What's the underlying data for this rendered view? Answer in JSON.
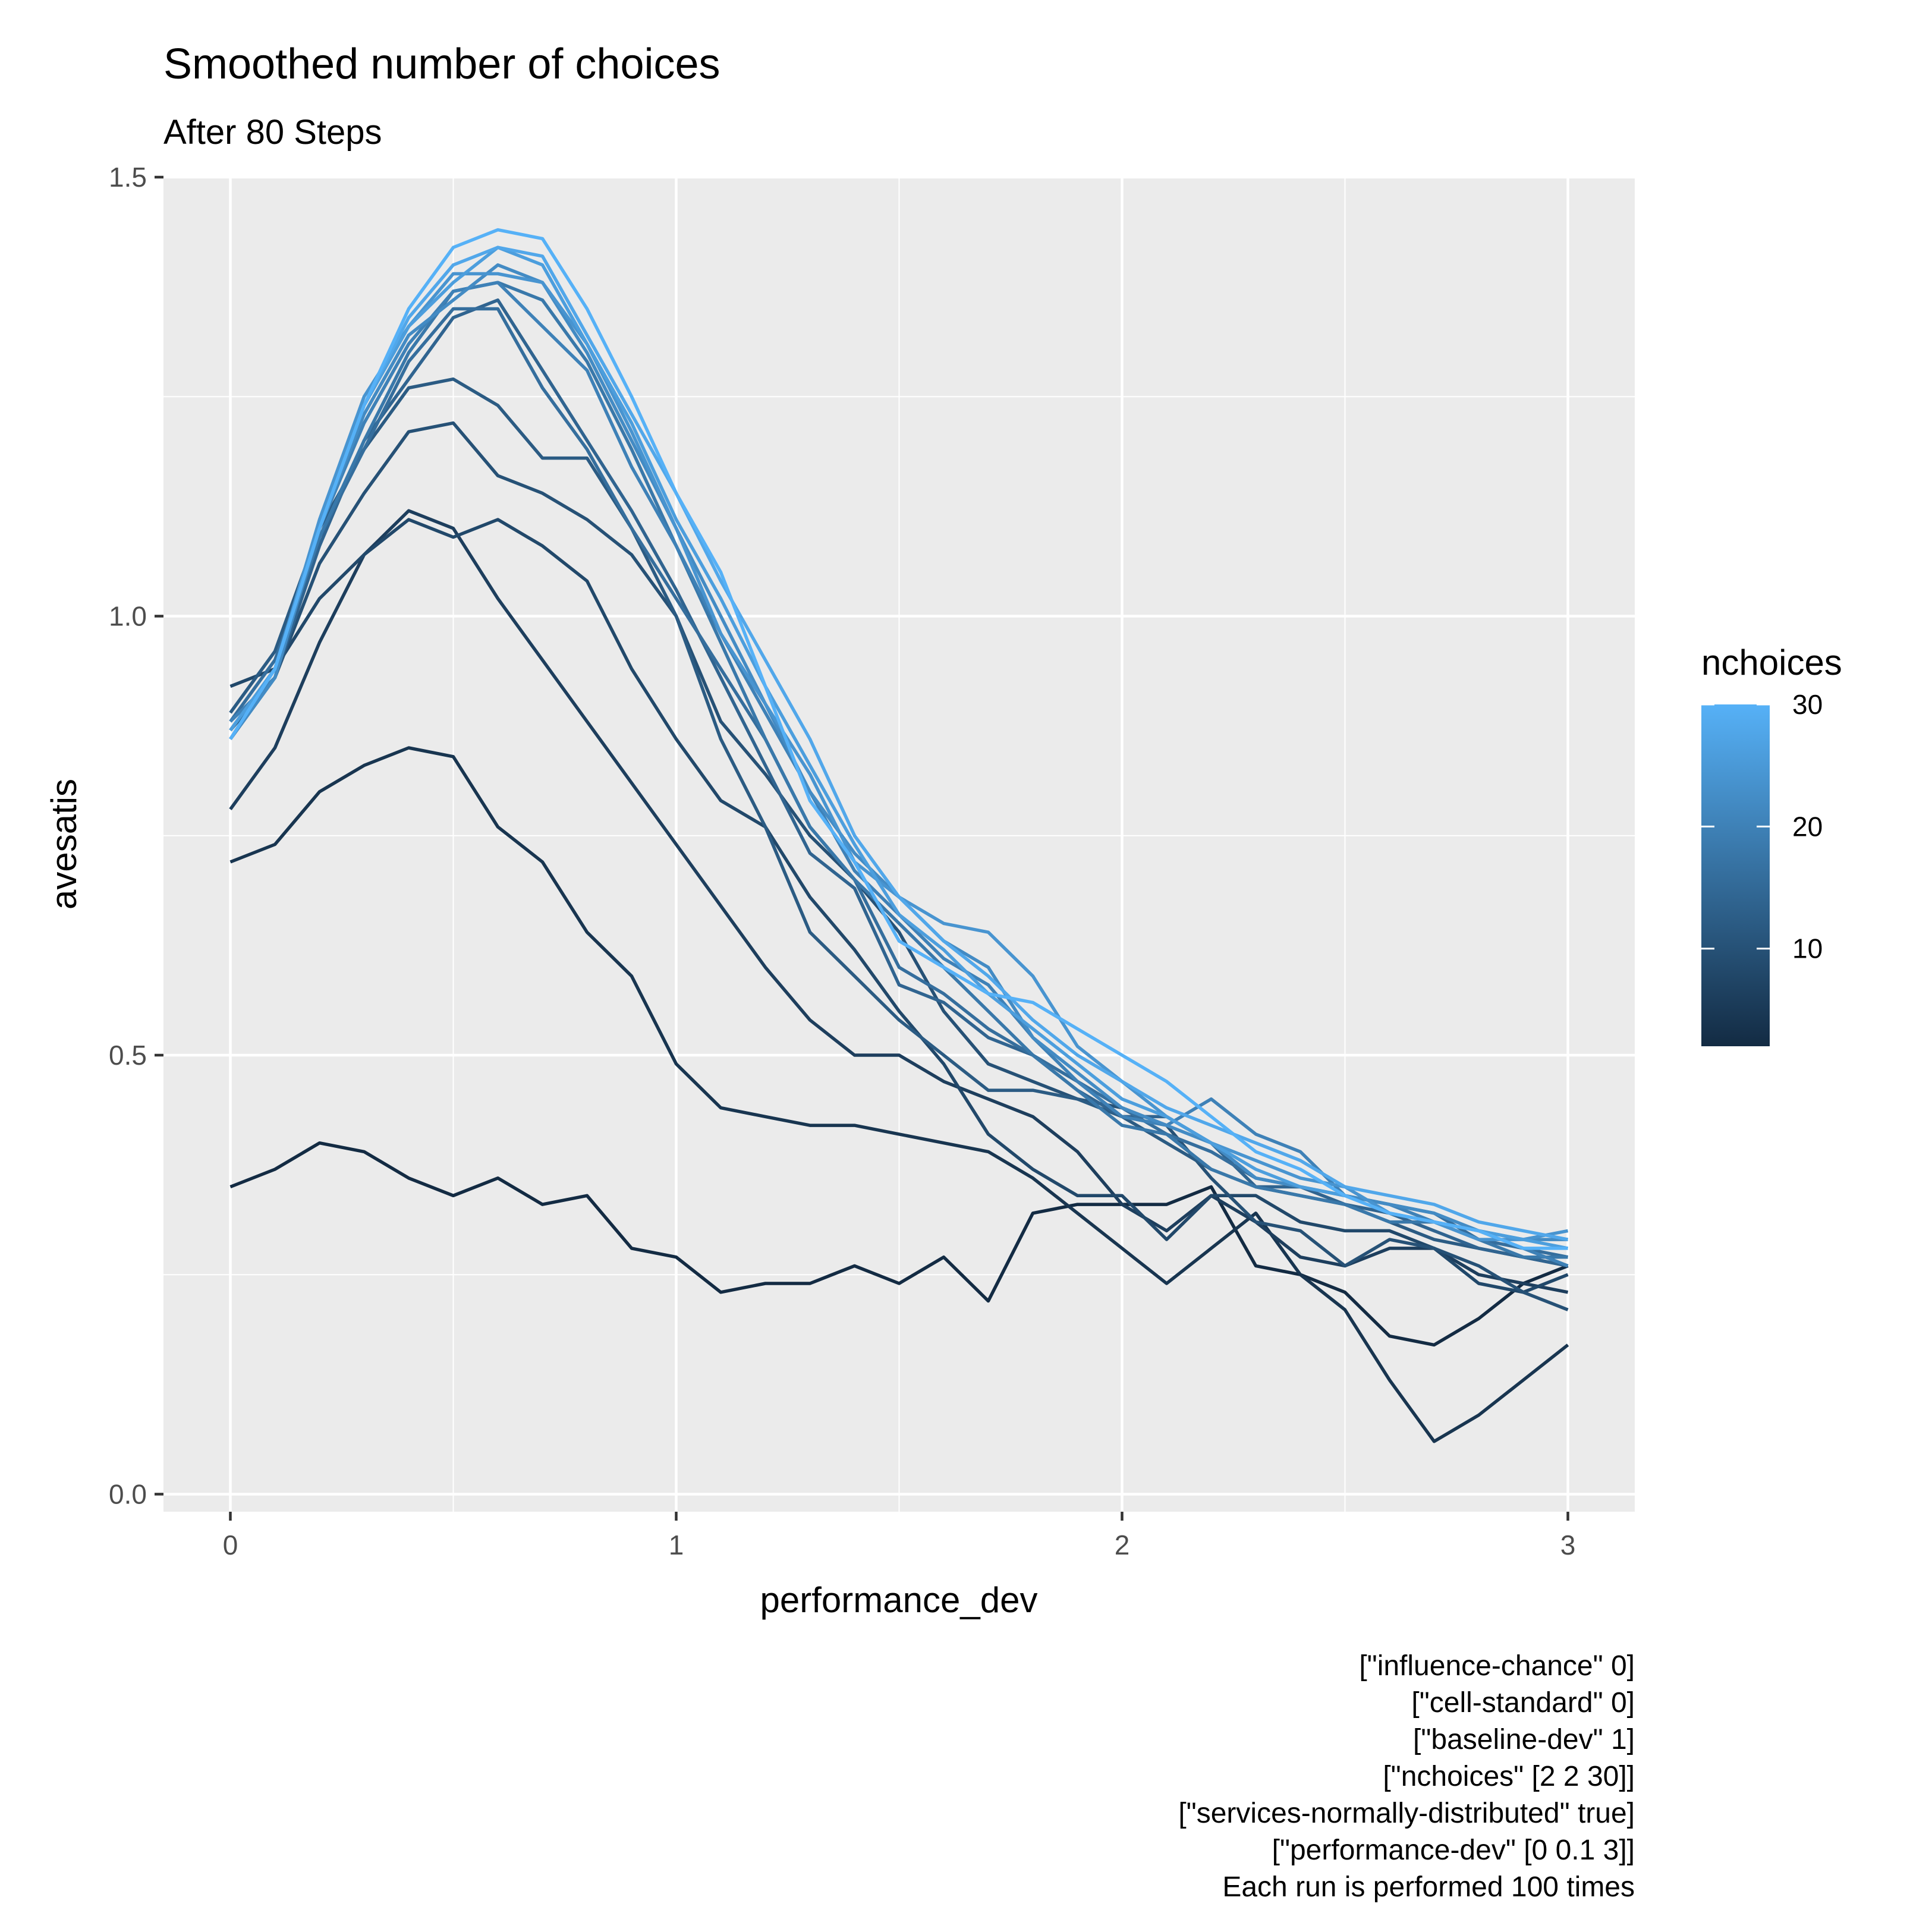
{
  "chart_data": {
    "type": "line",
    "title": "Smoothed number of choices",
    "subtitle": "After 80 Steps",
    "xlabel": "performance_dev",
    "ylabel": "avesatis",
    "xlim": [
      -0.15,
      3.15
    ],
    "ylim": [
      -0.02,
      1.5
    ],
    "x_ticks": [
      0,
      1,
      2,
      3
    ],
    "y_ticks": [
      0.0,
      0.5,
      1.0,
      1.5
    ],
    "x_tick_labels": [
      "0",
      "1",
      "2",
      "3"
    ],
    "y_tick_labels": [
      "0.0",
      "0.5",
      "1.0",
      "1.5"
    ],
    "grid": true,
    "legend": {
      "title": "nchoices",
      "position": "right",
      "type": "colorbar",
      "range": [
        2,
        30
      ],
      "ticks": [
        10,
        20,
        30
      ],
      "tick_labels": [
        "10",
        "20",
        "30"
      ],
      "low_color": "#132B43",
      "high_color": "#56B1F7"
    },
    "x": [
      0,
      0.1,
      0.2,
      0.3,
      0.4,
      0.5,
      0.6,
      0.7,
      0.8,
      0.9,
      1.0,
      1.1,
      1.2,
      1.3,
      1.4,
      1.5,
      1.6,
      1.7,
      1.8,
      1.9,
      2.0,
      2.1,
      2.2,
      2.3,
      2.4,
      2.5,
      2.6,
      2.7,
      2.8,
      2.9,
      3.0
    ],
    "series": [
      {
        "nchoices": 2,
        "values": [
          0.35,
          0.37,
          0.4,
          0.39,
          0.36,
          0.34,
          0.36,
          0.33,
          0.34,
          0.28,
          0.27,
          0.23,
          0.24,
          0.24,
          0.26,
          0.24,
          0.27,
          0.22,
          0.32,
          0.33,
          0.33,
          0.33,
          0.35,
          0.26,
          0.25,
          0.23,
          0.18,
          0.17,
          0.2,
          0.24,
          0.26
        ]
      },
      {
        "nchoices": 4,
        "values": [
          0.72,
          0.74,
          0.8,
          0.83,
          0.85,
          0.84,
          0.76,
          0.72,
          0.64,
          0.59,
          0.49,
          0.44,
          0.43,
          0.42,
          0.42,
          0.41,
          0.4,
          0.39,
          0.36,
          0.32,
          0.28,
          0.24,
          0.28,
          0.32,
          0.25,
          0.21,
          0.13,
          0.06,
          0.09,
          0.13,
          0.17
        ]
      },
      {
        "nchoices": 6,
        "values": [
          0.78,
          0.85,
          0.97,
          1.07,
          1.12,
          1.1,
          1.02,
          0.95,
          0.88,
          0.81,
          0.74,
          0.67,
          0.6,
          0.54,
          0.5,
          0.5,
          0.47,
          0.45,
          0.43,
          0.39,
          0.33,
          0.3,
          0.34,
          0.31,
          0.27,
          0.26,
          0.28,
          0.28,
          0.25,
          0.24,
          0.23
        ]
      },
      {
        "nchoices": 8,
        "values": [
          0.92,
          0.94,
          1.02,
          1.07,
          1.11,
          1.09,
          1.11,
          1.08,
          1.04,
          0.94,
          0.86,
          0.79,
          0.76,
          0.68,
          0.62,
          0.55,
          0.49,
          0.41,
          0.37,
          0.34,
          0.34,
          0.29,
          0.34,
          0.34,
          0.31,
          0.3,
          0.3,
          0.28,
          0.24,
          0.23,
          0.25
        ]
      },
      {
        "nchoices": 10,
        "values": [
          0.87,
          0.93,
          1.06,
          1.14,
          1.21,
          1.22,
          1.16,
          1.14,
          1.11,
          1.07,
          1.0,
          0.88,
          0.82,
          0.75,
          0.7,
          0.64,
          0.55,
          0.49,
          0.47,
          0.45,
          0.44,
          0.42,
          0.36,
          0.31,
          0.3,
          0.26,
          0.29,
          0.28,
          0.26,
          0.23,
          0.21
        ]
      },
      {
        "nchoices": 12,
        "values": [
          0.89,
          0.96,
          1.1,
          1.19,
          1.26,
          1.27,
          1.24,
          1.18,
          1.18,
          1.1,
          1.0,
          0.86,
          0.76,
          0.64,
          0.59,
          0.54,
          0.5,
          0.46,
          0.46,
          0.45,
          0.43,
          0.4,
          0.37,
          0.35,
          0.34,
          0.33,
          0.31,
          0.29,
          0.28,
          0.27,
          0.26
        ]
      },
      {
        "nchoices": 14,
        "values": [
          0.86,
          0.93,
          1.08,
          1.2,
          1.27,
          1.34,
          1.36,
          1.28,
          1.2,
          1.12,
          1.03,
          0.93,
          0.83,
          0.73,
          0.69,
          0.58,
          0.56,
          0.52,
          0.5,
          0.46,
          0.43,
          0.43,
          0.4,
          0.35,
          0.35,
          0.33,
          0.32,
          0.3,
          0.28,
          0.27,
          0.26
        ]
      },
      {
        "nchoices": 16,
        "values": [
          0.88,
          0.95,
          1.09,
          1.19,
          1.29,
          1.35,
          1.35,
          1.26,
          1.19,
          1.1,
          1.02,
          0.94,
          0.86,
          0.76,
          0.7,
          0.6,
          0.57,
          0.53,
          0.5,
          0.47,
          0.44,
          0.41,
          0.39,
          0.36,
          0.35,
          0.34,
          0.33,
          0.32,
          0.29,
          0.28,
          0.27
        ]
      },
      {
        "nchoices": 18,
        "values": [
          0.87,
          0.94,
          1.09,
          1.2,
          1.3,
          1.37,
          1.38,
          1.36,
          1.29,
          1.19,
          1.08,
          0.97,
          0.86,
          0.76,
          0.7,
          0.65,
          0.6,
          0.55,
          0.5,
          0.46,
          0.42,
          0.41,
          0.37,
          0.35,
          0.34,
          0.33,
          0.31,
          0.31,
          0.29,
          0.27,
          0.27
        ]
      },
      {
        "nchoices": 20,
        "values": [
          0.88,
          0.93,
          1.1,
          1.22,
          1.31,
          1.37,
          1.38,
          1.33,
          1.28,
          1.17,
          1.08,
          0.98,
          0.89,
          0.8,
          0.71,
          0.66,
          0.61,
          0.58,
          0.52,
          0.47,
          0.43,
          0.42,
          0.45,
          0.41,
          0.39,
          0.34,
          0.33,
          0.31,
          0.3,
          0.28,
          0.26
        ]
      },
      {
        "nchoices": 22,
        "values": [
          0.86,
          0.93,
          1.1,
          1.23,
          1.32,
          1.36,
          1.4,
          1.38,
          1.3,
          1.2,
          1.1,
          1.0,
          0.9,
          0.8,
          0.73,
          0.68,
          0.63,
          0.6,
          0.52,
          0.48,
          0.44,
          0.42,
          0.4,
          0.36,
          0.35,
          0.34,
          0.33,
          0.32,
          0.3,
          0.29,
          0.29
        ]
      },
      {
        "nchoices": 24,
        "values": [
          0.87,
          0.94,
          1.11,
          1.25,
          1.33,
          1.39,
          1.39,
          1.38,
          1.31,
          1.21,
          1.1,
          0.98,
          0.9,
          0.82,
          0.72,
          0.68,
          0.65,
          0.64,
          0.59,
          0.51,
          0.47,
          0.43,
          0.4,
          0.38,
          0.36,
          0.35,
          0.32,
          0.31,
          0.29,
          0.29,
          0.3
        ]
      },
      {
        "nchoices": 26,
        "values": [
          0.87,
          0.94,
          1.1,
          1.24,
          1.33,
          1.38,
          1.42,
          1.4,
          1.31,
          1.22,
          1.11,
          1.02,
          0.92,
          0.83,
          0.74,
          0.66,
          0.62,
          0.57,
          0.53,
          0.49,
          0.45,
          0.43,
          0.4,
          0.37,
          0.35,
          0.34,
          0.32,
          0.31,
          0.3,
          0.29,
          0.28
        ]
      },
      {
        "nchoices": 28,
        "values": [
          0.86,
          0.94,
          1.1,
          1.24,
          1.34,
          1.4,
          1.42,
          1.41,
          1.32,
          1.23,
          1.14,
          1.04,
          0.95,
          0.86,
          0.75,
          0.68,
          0.63,
          0.59,
          0.54,
          0.5,
          0.47,
          0.44,
          0.42,
          0.4,
          0.38,
          0.35,
          0.34,
          0.33,
          0.31,
          0.3,
          0.29
        ]
      },
      {
        "nchoices": 30,
        "values": [
          0.86,
          0.94,
          1.1,
          1.24,
          1.35,
          1.42,
          1.44,
          1.43,
          1.35,
          1.25,
          1.14,
          1.05,
          0.92,
          0.79,
          0.72,
          0.63,
          0.6,
          0.57,
          0.56,
          0.53,
          0.5,
          0.47,
          0.43,
          0.39,
          0.37,
          0.34,
          0.32,
          0.31,
          0.3,
          0.28,
          0.28
        ]
      }
    ],
    "caption_lines": [
      "[\"influence-chance\" 0]",
      "[\"cell-standard\" 0]",
      "[\"baseline-dev\" 1]",
      "[\"nchoices\" [2 2 30]]",
      "[\"services-normally-distributed\" true]",
      "[\"performance-dev\" [0 0.1 3]]",
      "Each run is performed 100 times"
    ]
  }
}
